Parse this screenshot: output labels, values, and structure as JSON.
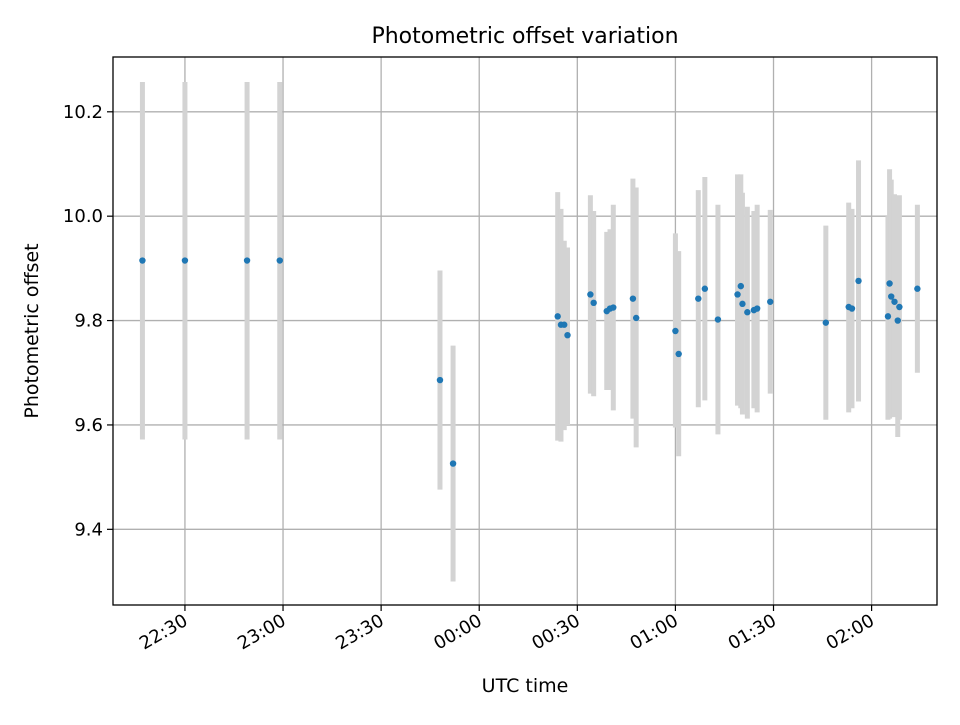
{
  "chart_data": {
    "type": "scatter",
    "title": "Photometric offset variation",
    "xlabel": "UTC time",
    "ylabel": "Photometric offset",
    "x_axis_type": "time",
    "xlim": [
      "22:08",
      "02:20"
    ],
    "ylim": [
      9.255,
      10.305
    ],
    "x_ticks": [
      "22:30",
      "23:00",
      "23:30",
      "00:00",
      "00:30",
      "01:00",
      "01:30",
      "02:00"
    ],
    "y_ticks": [
      "9.4",
      "9.6",
      "9.8",
      "10.0",
      "10.2"
    ],
    "grid": true,
    "error_bars": "vertical",
    "colors": {
      "marker": "#1f77b4",
      "error_bar": "#d3d3d3",
      "grid": "#b0b0b0",
      "axes": "#000000"
    },
    "series": [
      {
        "points": [
          {
            "x": "22:17",
            "y": 9.915,
            "low": 9.572,
            "high": 10.257
          },
          {
            "x": "22:30",
            "y": 9.915,
            "low": 9.572,
            "high": 10.257
          },
          {
            "x": "22:49",
            "y": 9.915,
            "low": 9.572,
            "high": 10.257
          },
          {
            "x": "22:59",
            "y": 9.915,
            "low": 9.572,
            "high": 10.257
          },
          {
            "x": "23:48",
            "y": 9.686,
            "low": 9.476,
            "high": 9.896
          },
          {
            "x": "23:52",
            "y": 9.526,
            "low": 9.3,
            "high": 9.752
          },
          {
            "x": "00:24",
            "y": 9.808,
            "low": 9.57,
            "high": 10.046
          },
          {
            "x": "00:25",
            "y": 9.792,
            "low": 9.568,
            "high": 10.014
          },
          {
            "x": "00:26",
            "y": 9.792,
            "low": 9.59,
            "high": 9.953
          },
          {
            "x": "00:27",
            "y": 9.772,
            "low": 9.6,
            "high": 9.94
          },
          {
            "x": "00:34",
            "y": 9.85,
            "low": 9.66,
            "high": 10.04
          },
          {
            "x": "00:35",
            "y": 9.834,
            "low": 9.655,
            "high": 10.01
          },
          {
            "x": "00:39",
            "y": 9.818,
            "low": 9.667,
            "high": 9.97
          },
          {
            "x": "00:40",
            "y": 9.823,
            "low": 9.667,
            "high": 9.975
          },
          {
            "x": "00:41",
            "y": 9.825,
            "low": 9.628,
            "high": 10.022
          },
          {
            "x": "00:47",
            "y": 9.842,
            "low": 9.612,
            "high": 10.072
          },
          {
            "x": "00:48",
            "y": 9.805,
            "low": 9.557,
            "high": 10.055
          },
          {
            "x": "01:00",
            "y": 9.78,
            "low": 9.595,
            "high": 9.967
          },
          {
            "x": "01:01",
            "y": 9.736,
            "low": 9.54,
            "high": 9.933
          },
          {
            "x": "01:07",
            "y": 9.842,
            "low": 9.634,
            "high": 10.05
          },
          {
            "x": "01:09",
            "y": 9.861,
            "low": 9.647,
            "high": 10.075
          },
          {
            "x": "01:13",
            "y": 9.802,
            "low": 9.582,
            "high": 10.022
          },
          {
            "x": "01:19",
            "y": 9.85,
            "low": 9.637,
            "high": 10.08
          },
          {
            "x": "01:20",
            "y": 9.866,
            "low": 9.632,
            "high": 10.08
          },
          {
            "x": "01:20.5",
            "y": 9.832,
            "low": 9.62,
            "high": 10.045
          },
          {
            "x": "01:22",
            "y": 9.816,
            "low": 9.612,
            "high": 10.018
          },
          {
            "x": "01:24",
            "y": 9.82,
            "low": 9.632,
            "high": 10.01
          },
          {
            "x": "01:25",
            "y": 9.823,
            "low": 9.624,
            "high": 10.022
          },
          {
            "x": "01:29",
            "y": 9.836,
            "low": 9.66,
            "high": 10.012
          },
          {
            "x": "01:46",
            "y": 9.796,
            "low": 9.61,
            "high": 9.982
          },
          {
            "x": "01:53",
            "y": 9.826,
            "low": 9.624,
            "high": 10.026
          },
          {
            "x": "01:54",
            "y": 9.823,
            "low": 9.632,
            "high": 10.014
          },
          {
            "x": "01:56",
            "y": 9.876,
            "low": 9.645,
            "high": 10.107
          },
          {
            "x": "02:05",
            "y": 9.808,
            "low": 9.61,
            "high": 10.0
          },
          {
            "x": "02:05.5",
            "y": 9.871,
            "low": 9.612,
            "high": 10.09
          },
          {
            "x": "02:06",
            "y": 9.846,
            "low": 9.622,
            "high": 10.07
          },
          {
            "x": "02:07",
            "y": 9.836,
            "low": 9.615,
            "high": 10.042
          },
          {
            "x": "02:08",
            "y": 9.8,
            "low": 9.577,
            "high": 10.022
          },
          {
            "x": "02:08.5",
            "y": 9.826,
            "low": 9.61,
            "high": 10.04
          },
          {
            "x": "02:14",
            "y": 9.861,
            "low": 9.7,
            "high": 10.022
          }
        ]
      }
    ]
  }
}
